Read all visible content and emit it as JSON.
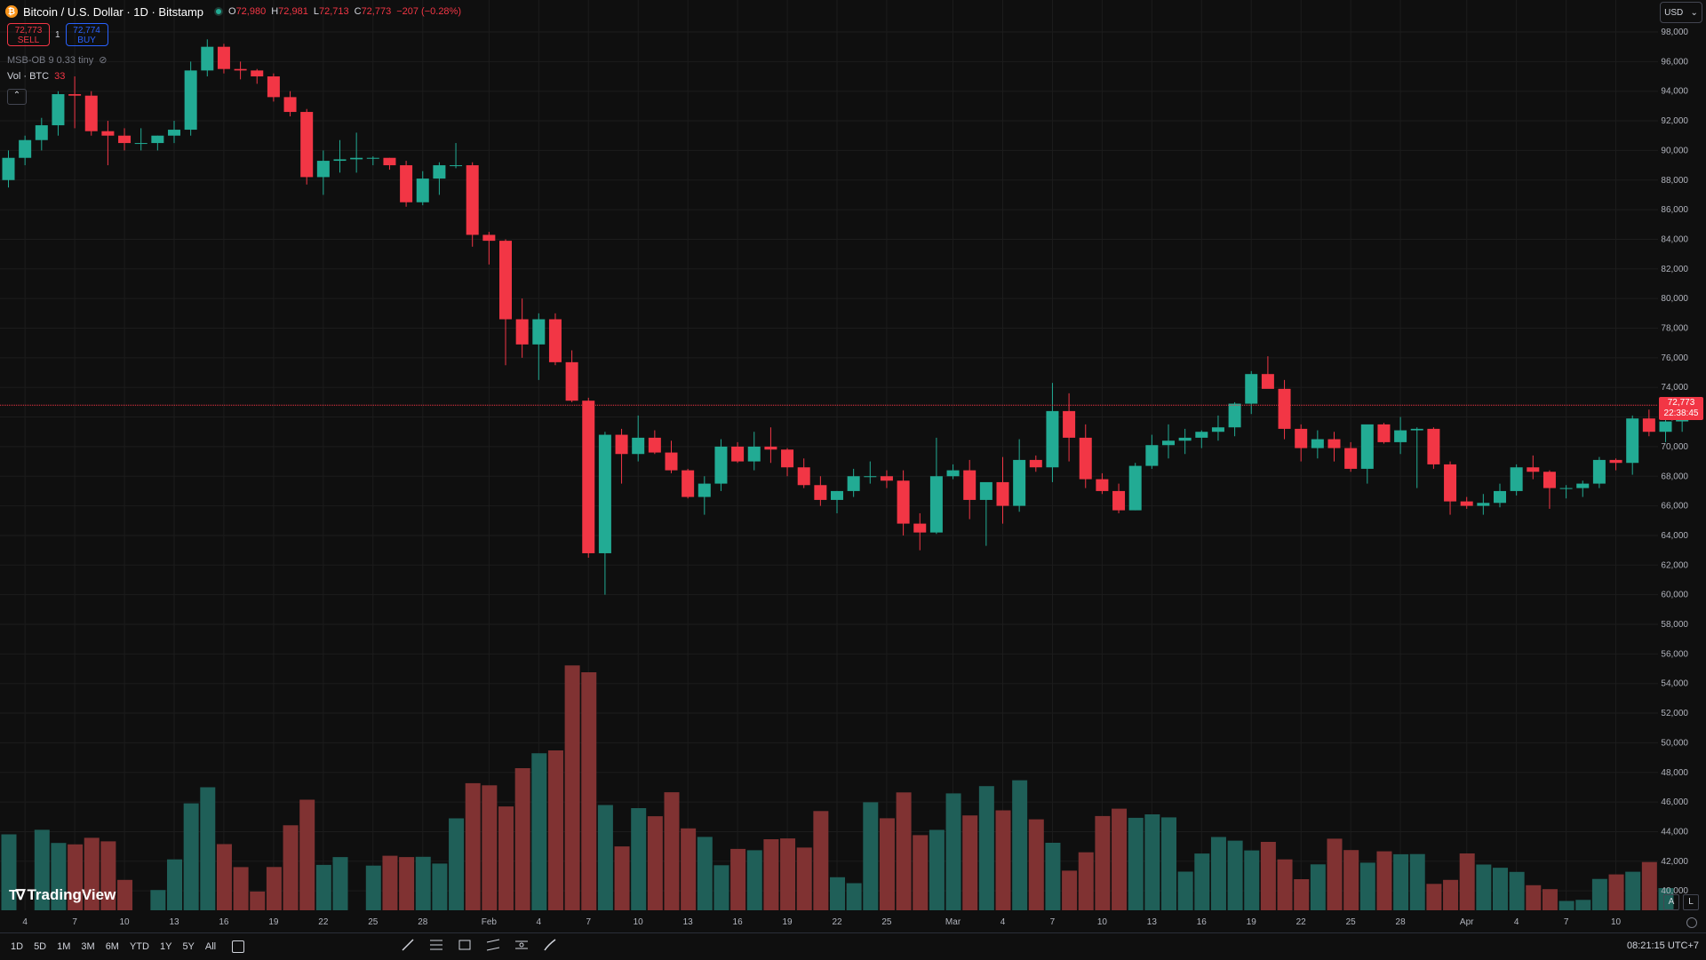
{
  "header": {
    "symbol": "Bitcoin / U.S. Dollar · 1D · Bitstamp",
    "coin_icon": "₿",
    "ohlc": {
      "o_label": "O",
      "o": "72,980",
      "h_label": "H",
      "h": "72,981",
      "l_label": "L",
      "l": "72,713",
      "c_label": "C",
      "c": "72,773",
      "change": "−207 (−0.28%)"
    }
  },
  "trade": {
    "sell_price": "72,773",
    "sell_label": "SELL",
    "spread": "1",
    "buy_price": "72,774",
    "buy_label": "BUY"
  },
  "indicators": {
    "msb": "MSB-OB 9 0.33 tiny",
    "vol_label": "Vol · BTC",
    "vol_value": "33"
  },
  "currency": "USD",
  "current_price": {
    "price": "72,773",
    "countdown": "22:38:45"
  },
  "logo_text": "TradingView",
  "timeframes": [
    "1D",
    "5D",
    "1M",
    "3M",
    "6M",
    "YTD",
    "1Y",
    "5Y",
    "All"
  ],
  "clock": "08:21:15 UTC+7",
  "scale_buttons": {
    "auto": "A",
    "log": "L"
  },
  "colors": {
    "up": "#22ab94",
    "down": "#f23645",
    "vol_up": "#1f5f58",
    "vol_down": "#803232",
    "background": "#0f0f0f",
    "grid": "#1c1c1c"
  },
  "chart_data": {
    "type": "candlestick",
    "y_axis": {
      "range": [
        40000,
        98000
      ],
      "ticks": [
        "98,000",
        "96,000",
        "94,000",
        "92,000",
        "90,000",
        "88,000",
        "86,000",
        "84,000",
        "82,000",
        "80,000",
        "78,000",
        "76,000",
        "74,000",
        "72,000",
        "70,000",
        "68,000",
        "66,000",
        "64,000",
        "62,000",
        "60,000",
        "58,000",
        "56,000",
        "54,000",
        "52,000",
        "50,000",
        "48,000",
        "46,000",
        "44,000",
        "42,000",
        "40,000"
      ]
    },
    "x_ticks": [
      {
        "label": "4",
        "i": 1
      },
      {
        "label": "7",
        "i": 4
      },
      {
        "label": "10",
        "i": 7
      },
      {
        "label": "13",
        "i": 10
      },
      {
        "label": "16",
        "i": 13
      },
      {
        "label": "19",
        "i": 16
      },
      {
        "label": "22",
        "i": 19
      },
      {
        "label": "25",
        "i": 22
      },
      {
        "label": "28",
        "i": 25
      },
      {
        "label": "Feb",
        "i": 29
      },
      {
        "label": "4",
        "i": 32
      },
      {
        "label": "7",
        "i": 35
      },
      {
        "label": "10",
        "i": 38
      },
      {
        "label": "13",
        "i": 41
      },
      {
        "label": "16",
        "i": 44
      },
      {
        "label": "19",
        "i": 47
      },
      {
        "label": "22",
        "i": 50
      },
      {
        "label": "25",
        "i": 53
      },
      {
        "label": "Mar",
        "i": 57
      },
      {
        "label": "4",
        "i": 60
      },
      {
        "label": "7",
        "i": 63
      },
      {
        "label": "10",
        "i": 66
      },
      {
        "label": "13",
        "i": 69
      },
      {
        "label": "16",
        "i": 72
      },
      {
        "label": "19",
        "i": 75
      },
      {
        "label": "22",
        "i": 78
      },
      {
        "label": "25",
        "i": 81
      },
      {
        "label": "28",
        "i": 84
      },
      {
        "label": "Apr",
        "i": 88
      },
      {
        "label": "4",
        "i": 91
      },
      {
        "label": "7",
        "i": 94
      },
      {
        "label": "10",
        "i": 97
      }
    ],
    "candles": [
      [
        88000,
        90000,
        87500,
        89500
      ],
      [
        89500,
        91000,
        89000,
        90700
      ],
      [
        90700,
        92200,
        90000,
        91700
      ],
      [
        91700,
        94000,
        91000,
        93800
      ],
      [
        93800,
        95000,
        91500,
        93700
      ],
      [
        93700,
        94000,
        91000,
        91300
      ],
      [
        91300,
        92000,
        89000,
        91000
      ],
      [
        91000,
        91500,
        90000,
        90500
      ],
      [
        90500,
        91500,
        90000,
        90500
      ],
      [
        90500,
        91000,
        90000,
        91000
      ],
      [
        91000,
        92000,
        90500,
        91400
      ],
      [
        91400,
        96000,
        91000,
        95400
      ],
      [
        95400,
        97500,
        95000,
        97000
      ],
      [
        97000,
        97200,
        95200,
        95500
      ],
      [
        95500,
        96000,
        94800,
        95400
      ],
      [
        95400,
        95500,
        94500,
        95000
      ],
      [
        95000,
        95200,
        93300,
        93600
      ],
      [
        93600,
        94000,
        92300,
        92600
      ],
      [
        92600,
        92800,
        87700,
        88200
      ],
      [
        88200,
        90000,
        87000,
        89300
      ],
      [
        89300,
        90700,
        88500,
        89400
      ],
      [
        89400,
        91200,
        88500,
        89500
      ],
      [
        89500,
        89600,
        89000,
        89500
      ],
      [
        89500,
        89500,
        88700,
        89000
      ],
      [
        89000,
        89300,
        86200,
        86500
      ],
      [
        86500,
        88600,
        86300,
        88100
      ],
      [
        88100,
        89200,
        87000,
        89000
      ],
      [
        89000,
        90500,
        88800,
        89000
      ],
      [
        89000,
        89200,
        83500,
        84300
      ],
      [
        84300,
        84500,
        82300,
        83900
      ],
      [
        83900,
        84000,
        75500,
        78600
      ],
      [
        78600,
        80000,
        76000,
        76900
      ],
      [
        76900,
        79000,
        74500,
        78600
      ],
      [
        78600,
        79000,
        75500,
        75700
      ],
      [
        75700,
        76500,
        73000,
        73100
      ],
      [
        73100,
        73300,
        62500,
        62800
      ],
      [
        62800,
        71000,
        60000,
        70800
      ],
      [
        70800,
        71200,
        67500,
        69500
      ],
      [
        69500,
        72100,
        69000,
        70600
      ],
      [
        70600,
        71100,
        69500,
        69600
      ],
      [
        69600,
        70400,
        68200,
        68400
      ],
      [
        68400,
        68500,
        66500,
        66600
      ],
      [
        66600,
        68000,
        65400,
        67500
      ],
      [
        67500,
        70500,
        67000,
        70000
      ],
      [
        70000,
        70300,
        68900,
        69000
      ],
      [
        69000,
        71000,
        68400,
        70000
      ],
      [
        70000,
        71300,
        68900,
        69800
      ],
      [
        69800,
        69900,
        68000,
        68600
      ],
      [
        68600,
        69200,
        67200,
        67400
      ],
      [
        67400,
        68000,
        66000,
        66400
      ],
      [
        66400,
        67000,
        65500,
        67000
      ],
      [
        67000,
        68500,
        66600,
        68000
      ],
      [
        68000,
        69000,
        67500,
        68000
      ],
      [
        68000,
        68400,
        67200,
        67700
      ],
      [
        67700,
        68400,
        64000,
        64800
      ],
      [
        64800,
        65500,
        63000,
        64200
      ],
      [
        64200,
        70600,
        64100,
        68000
      ],
      [
        68000,
        68800,
        67800,
        68400
      ],
      [
        68400,
        69100,
        65100,
        66400
      ],
      [
        66400,
        67500,
        63300,
        67600
      ],
      [
        67600,
        69300,
        64800,
        66000
      ],
      [
        66000,
        70500,
        65600,
        69100
      ],
      [
        69100,
        69400,
        68300,
        68600
      ],
      [
        68600,
        74300,
        67600,
        72400
      ],
      [
        72400,
        73600,
        69000,
        70600
      ],
      [
        70600,
        71500,
        67200,
        67800
      ],
      [
        67800,
        68200,
        66800,
        67000
      ],
      [
        67000,
        67500,
        65500,
        65700
      ],
      [
        65700,
        68900,
        65700,
        68700
      ],
      [
        68700,
        70800,
        68500,
        70100
      ],
      [
        70100,
        71500,
        69200,
        70400
      ],
      [
        70400,
        71200,
        69500,
        70600
      ],
      [
        70600,
        71100,
        69900,
        71000
      ],
      [
        71000,
        72100,
        70400,
        71300
      ],
      [
        71300,
        73000,
        70700,
        72900
      ],
      [
        72900,
        75100,
        72200,
        74900
      ],
      [
        74900,
        76100,
        74000,
        73900
      ],
      [
        73900,
        74500,
        70500,
        71200
      ],
      [
        71200,
        71500,
        69000,
        69900
      ],
      [
        69900,
        71100,
        69200,
        70500
      ],
      [
        70500,
        71000,
        69000,
        69900
      ],
      [
        69900,
        70300,
        68300,
        68500
      ],
      [
        68500,
        71400,
        67500,
        71500
      ],
      [
        71500,
        71600,
        70200,
        70300
      ],
      [
        70300,
        72000,
        69500,
        71100
      ],
      [
        71100,
        71300,
        67200,
        71200
      ],
      [
        71200,
        71300,
        68500,
        68800
      ],
      [
        68800,
        69000,
        65400,
        66300
      ],
      [
        66300,
        66600,
        65800,
        66000
      ],
      [
        66000,
        66800,
        65400,
        66200
      ],
      [
        66200,
        67500,
        65900,
        67000
      ],
      [
        67000,
        68800,
        66700,
        68600
      ],
      [
        68600,
        69400,
        67800,
        68300
      ],
      [
        68300,
        68400,
        65800,
        67200
      ],
      [
        67200,
        67400,
        66500,
        67200
      ],
      [
        67200,
        67700,
        66600,
        67500
      ],
      [
        67500,
        69300,
        67200,
        69100
      ],
      [
        69100,
        69200,
        68400,
        68900
      ],
      [
        68900,
        72100,
        68100,
        71900
      ],
      [
        71900,
        72500,
        70700,
        71000
      ],
      [
        71000,
        72300,
        70300,
        71700
      ],
      [
        71700,
        73000,
        71000,
        72800
      ]
    ],
    "volume": [
      0.0855,
      0.0,
      0.0906,
      0.0758,
      0.0742,
      0.0816,
      0.0776,
      0.0342,
      0.0,
      0.0228,
      0.0573,
      0.1204,
      0.1385,
      0.0745,
      0.0486,
      0.0211,
      0.0487,
      0.0957,
      0.1245,
      0.0511,
      0.0599,
      0.0,
      0.0503,
      0.0614,
      0.0599,
      0.0602,
      0.0526,
      0.1035,
      0.1431,
      0.1407,
      0.1169,
      0.16,
      0.1768,
      0.18,
      0.2757,
      0.268,
      0.1185,
      0.0719,
      0.115,
      0.1059,
      0.1329,
      0.0922,
      0.0826,
      0.0507,
      0.0691,
      0.0676,
      0.08,
      0.0809,
      0.0706,
      0.1117,
      0.0372,
      0.0305,
      0.1216,
      0.1036,
      0.1327,
      0.0846,
      0.0905,
      0.1316,
      0.1068,
      0.1398,
      0.1125,
      0.1464,
      0.1024,
      0.076,
      0.0446,
      0.0653,
      0.1061,
      0.1144,
      0.1041,
      0.108,
      0.1046,
      0.0435,
      0.0639,
      0.0825,
      0.0784,
      0.0674,
      0.077,
      0.0573,
      0.035,
      0.0517,
      0.0806,
      0.0678,
      0.0536,
      0.0664,
      0.0631,
      0.0633,
      0.0297,
      0.0342,
      0.064,
      0.0515,
      0.0479,
      0.0432,
      0.0282,
      0.0238,
      0.0105,
      0.0117,
      0.0353,
      0.0404,
      0.0434,
      0.0543,
      0.025
    ]
  }
}
